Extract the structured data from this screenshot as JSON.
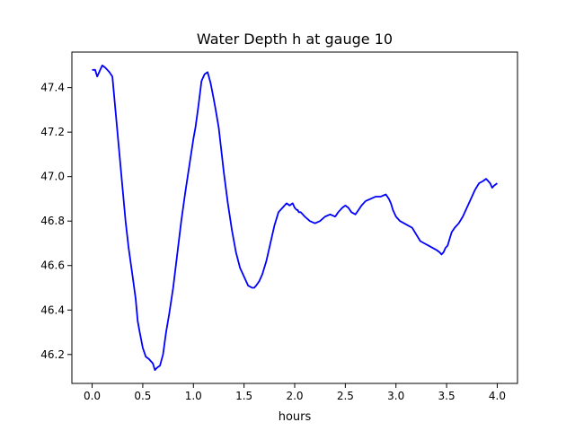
{
  "chart_data": {
    "type": "line",
    "title": "Water Depth h at gauge 10",
    "xlabel": "hours",
    "ylabel": "",
    "xlim": [
      -0.2,
      4.2
    ],
    "ylim": [
      46.07,
      47.56
    ],
    "xticks": [
      0.0,
      0.5,
      1.0,
      1.5,
      2.0,
      2.5,
      3.0,
      3.5,
      4.0
    ],
    "xtick_labels": [
      "0.0",
      "0.5",
      "1.0",
      "1.5",
      "2.0",
      "2.5",
      "3.0",
      "3.5",
      "4.0"
    ],
    "yticks": [
      46.2,
      46.4,
      46.6,
      46.8,
      47.0,
      47.2,
      47.4
    ],
    "ytick_labels": [
      "46.2",
      "46.4",
      "46.6",
      "46.8",
      "47.0",
      "47.2",
      "47.4"
    ],
    "grid": false,
    "color": "#0000ff",
    "series": [
      {
        "x": [
          0.0,
          0.03,
          0.05,
          0.08,
          0.1,
          0.13,
          0.15,
          0.17,
          0.2,
          0.23,
          0.26,
          0.3,
          0.33,
          0.36,
          0.4,
          0.43,
          0.45,
          0.47,
          0.5,
          0.53,
          0.56,
          0.58,
          0.6,
          0.62,
          0.64,
          0.67,
          0.7,
          0.73,
          0.76,
          0.8,
          0.84,
          0.88,
          0.92,
          0.96,
          1.0,
          1.02,
          1.05,
          1.08,
          1.11,
          1.14,
          1.17,
          1.2,
          1.22,
          1.25,
          1.28,
          1.3,
          1.34,
          1.38,
          1.42,
          1.46,
          1.5,
          1.54,
          1.58,
          1.6,
          1.62,
          1.65,
          1.68,
          1.72,
          1.76,
          1.8,
          1.84,
          1.88,
          1.92,
          1.95,
          1.98,
          2.0,
          2.02,
          2.03,
          2.04,
          2.06,
          2.1,
          2.15,
          2.2,
          2.25,
          2.3,
          2.35,
          2.4,
          2.43,
          2.45,
          2.47,
          2.5,
          2.53,
          2.56,
          2.6,
          2.63,
          2.66,
          2.7,
          2.75,
          2.8,
          2.85,
          2.9,
          2.93,
          2.95,
          2.97,
          3.0,
          3.04,
          3.08,
          3.12,
          3.16,
          3.2,
          3.24,
          3.28,
          3.32,
          3.36,
          3.4,
          3.43,
          3.45,
          3.47,
          3.49,
          3.51,
          3.53,
          3.55,
          3.58,
          3.62,
          3.66,
          3.7,
          3.74,
          3.78,
          3.82,
          3.86,
          3.89,
          3.91,
          3.93,
          3.95,
          3.97,
          4.0
        ],
        "y": [
          47.48,
          47.48,
          47.45,
          47.48,
          47.5,
          47.49,
          47.48,
          47.47,
          47.45,
          47.3,
          47.15,
          46.95,
          46.8,
          46.68,
          46.55,
          46.45,
          46.35,
          46.3,
          46.23,
          46.19,
          46.18,
          46.17,
          46.16,
          46.13,
          46.14,
          46.15,
          46.2,
          46.3,
          46.38,
          46.5,
          46.65,
          46.8,
          46.93,
          47.05,
          47.17,
          47.22,
          47.32,
          47.43,
          47.46,
          47.47,
          47.42,
          47.35,
          47.3,
          47.22,
          47.1,
          47.02,
          46.88,
          46.76,
          46.66,
          46.59,
          46.55,
          46.51,
          46.5,
          46.5,
          46.51,
          46.53,
          46.56,
          46.62,
          46.7,
          46.78,
          46.84,
          46.86,
          46.88,
          46.87,
          46.88,
          46.86,
          46.85,
          46.85,
          46.84,
          46.84,
          46.82,
          46.8,
          46.79,
          46.8,
          46.82,
          46.83,
          46.82,
          46.84,
          46.85,
          46.86,
          46.87,
          46.86,
          46.84,
          46.83,
          46.85,
          46.87,
          46.89,
          46.9,
          46.91,
          46.91,
          46.92,
          46.9,
          46.88,
          46.85,
          46.82,
          46.8,
          46.79,
          46.78,
          46.77,
          46.74,
          46.71,
          46.7,
          46.69,
          46.68,
          46.67,
          46.66,
          46.65,
          46.66,
          46.68,
          46.69,
          46.72,
          46.75,
          46.77,
          46.79,
          46.82,
          46.86,
          46.9,
          46.94,
          46.97,
          46.98,
          46.99,
          46.98,
          46.97,
          46.95,
          46.96,
          46.97
        ]
      }
    ]
  }
}
